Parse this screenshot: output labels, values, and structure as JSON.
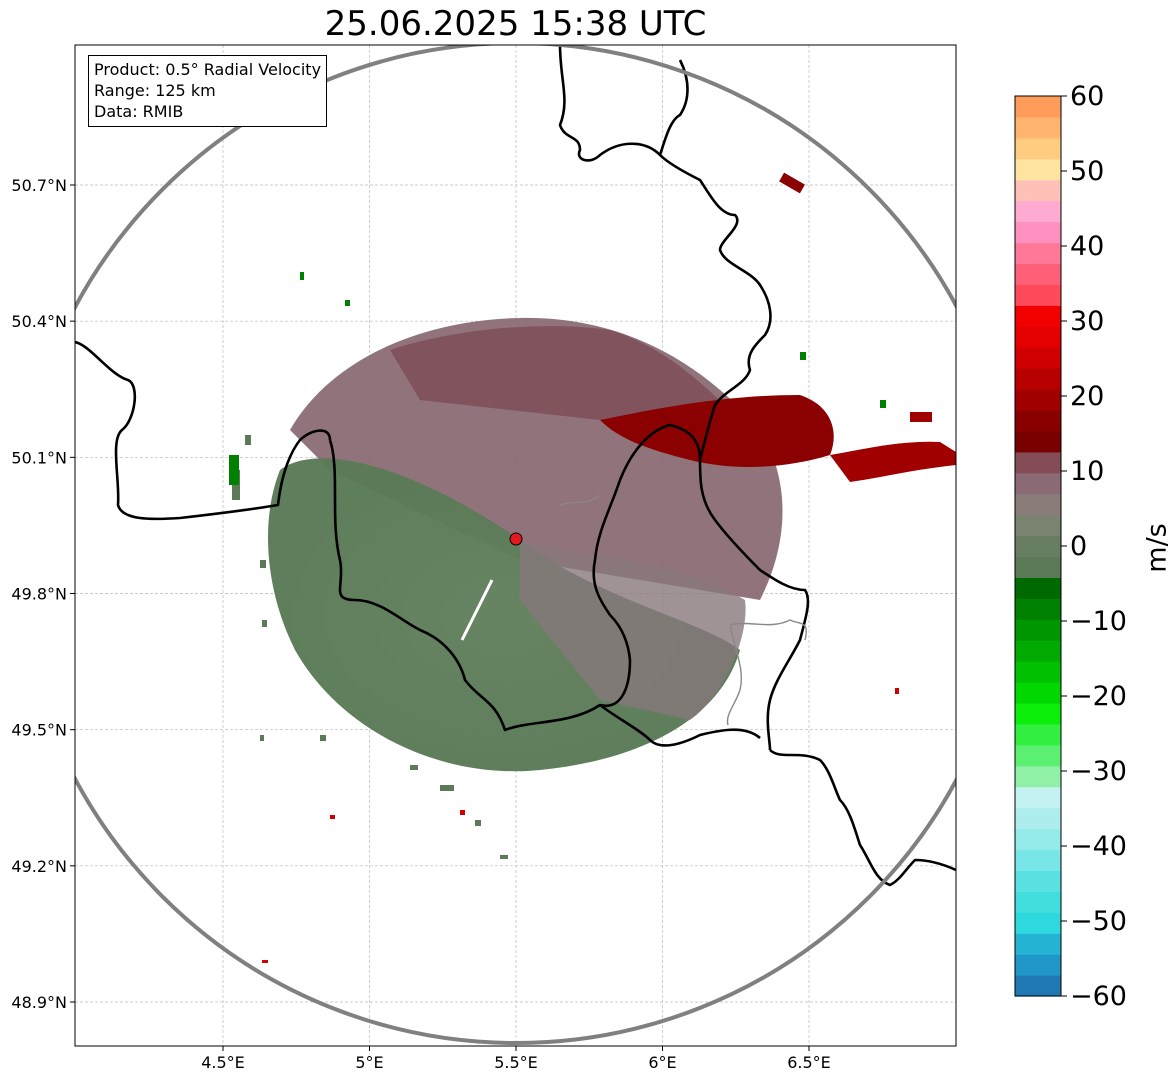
{
  "title": "25.06.2025 15:38 UTC",
  "info_box": {
    "product": "Product: 0.5° Radial Velocity",
    "range": "Range: 125 km",
    "data": "Data: RMIB"
  },
  "axes": {
    "x_ticks": [
      "4.5°E",
      "5°E",
      "5.5°E",
      "6°E",
      "6.5°E"
    ],
    "x_tick_values": [
      4.5,
      5.0,
      5.5,
      6.0,
      6.5
    ],
    "y_ticks": [
      "50.7°N",
      "50.4°N",
      "50.1°N",
      "49.8°N",
      "49.5°N",
      "49.2°N",
      "48.9°N"
    ],
    "y_tick_values": [
      50.7,
      50.4,
      50.1,
      49.8,
      49.5,
      49.2,
      48.9
    ],
    "lon_range": [
      4.0,
      7.0
    ],
    "lat_range": [
      48.8,
      51.0
    ],
    "grid": true
  },
  "radar": {
    "site_lon": 5.5,
    "site_lat": 49.92,
    "marker_color": "#e31a1c",
    "range_ring_color": "#808080"
  },
  "colorbar": {
    "label": "m/s",
    "min": -60,
    "max": 60,
    "ticks": [
      "60",
      "50",
      "40",
      "30",
      "20",
      "10",
      "0",
      "−10",
      "−20",
      "−30",
      "−40",
      "−50",
      "−60"
    ],
    "tick_values": [
      60,
      50,
      40,
      30,
      20,
      10,
      0,
      -10,
      -20,
      -30,
      -40,
      -50,
      -60
    ],
    "colors_bottom_to_top": [
      "#1f78b4",
      "#2196c8",
      "#26b4d4",
      "#2ed8df",
      "#42dede",
      "#5ae2e2",
      "#78e6e6",
      "#95eaea",
      "#aeeded",
      "#c4f2f2",
      "#90f0a8",
      "#5cf070",
      "#33f040",
      "#0aee0a",
      "#00d800",
      "#00c000",
      "#00aa00",
      "#009600",
      "#008000",
      "#006a00",
      "#5c7a58",
      "#687e62",
      "#7a8270",
      "#8a7c78",
      "#8a6a74",
      "#844c56",
      "#780000",
      "#8a0000",
      "#a00000",
      "#b80000",
      "#d00000",
      "#e40000",
      "#f20000",
      "#ff4a5c",
      "#ff6078",
      "#ff7898",
      "#ff90c0",
      "#ffaad0",
      "#ffc0b8",
      "#ffe4a0",
      "#ffcc80",
      "#ffb470",
      "#ff9c5a"
    ]
  },
  "map_colors": {
    "background": "#ffffff",
    "border": "#000000",
    "secondary_border": "#888888",
    "grid": "#bbbbbb"
  }
}
